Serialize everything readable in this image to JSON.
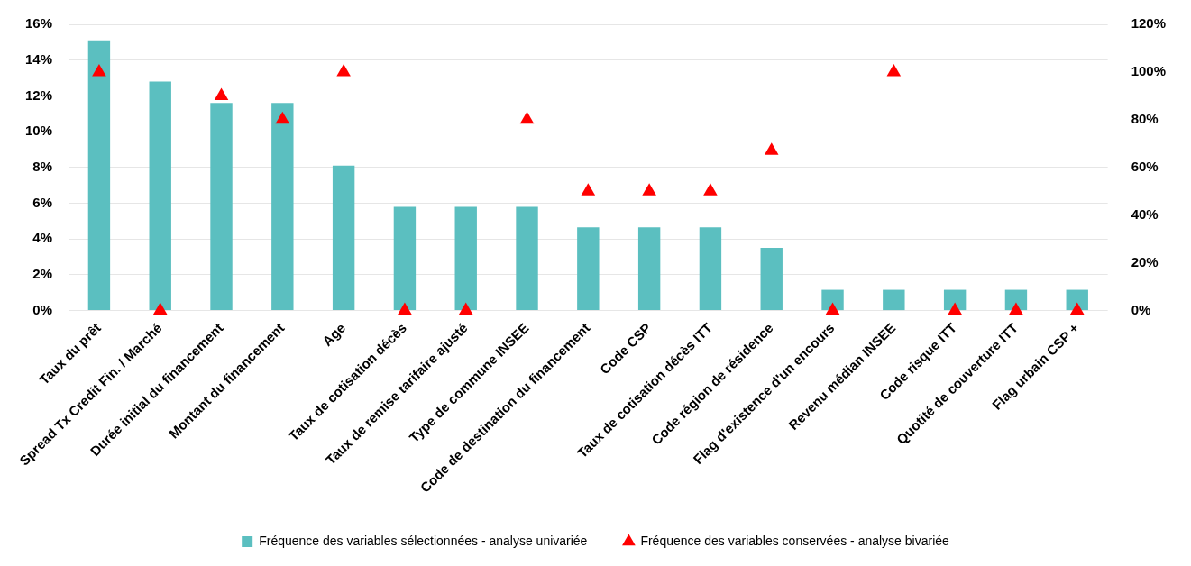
{
  "chart_data": {
    "type": "bar",
    "categories": [
      "Taux du prêt",
      "Spread Tx Credit Fin. / Marché",
      "Durée initial du financement",
      "Montant du financement",
      "Age",
      "Taux de cotisation décès",
      "Taux de remise tarifaire ajusté",
      "Type de commune INSEE",
      "Code de destination du financement",
      "Code CSP",
      "Taux de cotisation décès ITT",
      "Code région de résidence",
      "Flag d'existence d'un encours",
      "Revenu médian INSEE",
      "Code risque ITT",
      "Quotité de couverture ITT",
      "Flag urbain CSP +"
    ],
    "series": [
      {
        "name": "Fréquence des variables sélectionnées - analyse univariée",
        "color": "#5bbfc0",
        "values": [
          15.1,
          12.8,
          11.6,
          11.6,
          8.1,
          5.8,
          5.8,
          5.8,
          4.65,
          4.65,
          4.65,
          3.5,
          1.16,
          1.16,
          1.16,
          1.16,
          1.16
        ]
      },
      {
        "name": "Fréquence des variables conservées - analyse bivariée",
        "type": "scatter",
        "axis": "y2",
        "marker": "triangle",
        "color": "#ff0000",
        "values": [
          100,
          0,
          90,
          80,
          100,
          0,
          0,
          80,
          50,
          50,
          50,
          67,
          0,
          100,
          0,
          0,
          0
        ]
      }
    ],
    "ylim": [
      0,
      16
    ],
    "yticks": [
      {
        "value": 0,
        "label": "0%"
      },
      {
        "value": 2,
        "label": "2%"
      },
      {
        "value": 4,
        "label": "4%"
      },
      {
        "value": 6,
        "label": "6%"
      },
      {
        "value": 8,
        "label": "8%"
      },
      {
        "value": 10,
        "label": "10%"
      },
      {
        "value": 12,
        "label": "12%"
      },
      {
        "value": 14,
        "label": "14%"
      },
      {
        "value": 16,
        "label": "16%"
      }
    ],
    "y2lim": [
      0,
      120
    ],
    "y2ticks": [
      {
        "value": 0,
        "label": "0%"
      },
      {
        "value": 20,
        "label": "20%"
      },
      {
        "value": 40,
        "label": "40%"
      },
      {
        "value": 60,
        "label": "60%"
      },
      {
        "value": 80,
        "label": "80%"
      },
      {
        "value": 100,
        "label": "100%"
      },
      {
        "value": 120,
        "label": "120%"
      }
    ],
    "grid": "y",
    "legend": "bottom"
  }
}
